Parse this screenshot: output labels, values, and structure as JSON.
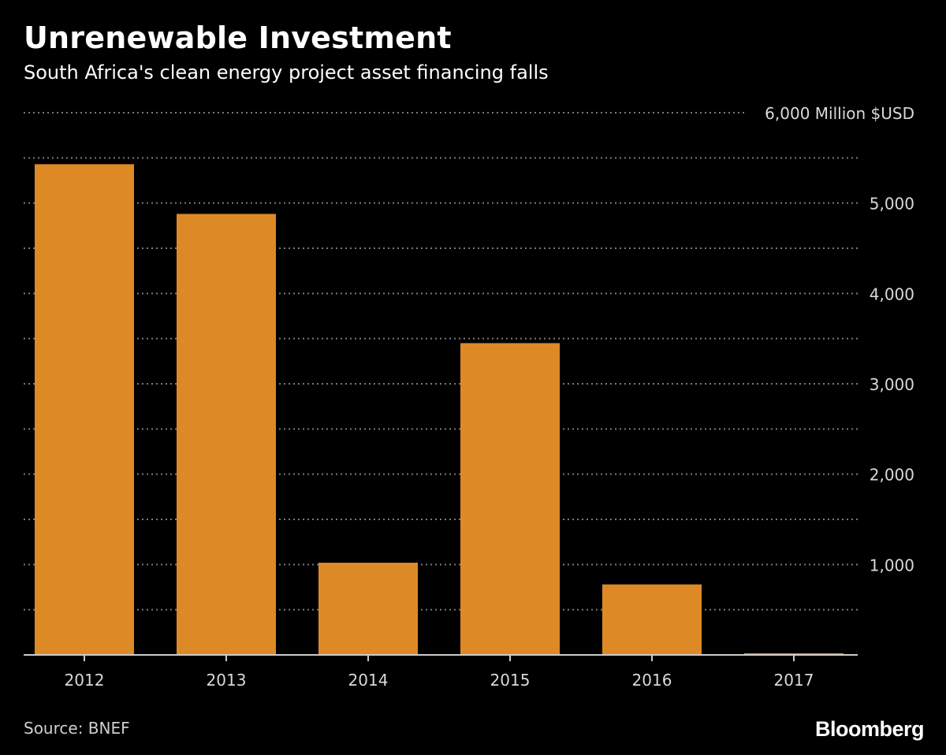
{
  "chart_data": {
    "type": "bar",
    "title": "Unrenewable Investment",
    "subtitle": "South Africa's clean energy project asset financing falls",
    "categories": [
      "2012",
      "2013",
      "2014",
      "2015",
      "2016",
      "2017"
    ],
    "values": [
      5430,
      4880,
      1020,
      3450,
      780,
      10
    ],
    "ylim": [
      0,
      6000
    ],
    "y_ticks": [
      {
        "value": 1000,
        "label": "1,000"
      },
      {
        "value": 2000,
        "label": "2,000"
      },
      {
        "value": 3000,
        "label": "3,000"
      },
      {
        "value": 4000,
        "label": "4,000"
      },
      {
        "value": 5000,
        "label": "5,000"
      },
      {
        "value": 6000,
        "label": "6,000 Million $USD"
      }
    ],
    "minor_gridlines": [
      500,
      1500,
      2500,
      3500,
      4500,
      5500
    ],
    "ylabel": "Million $USD",
    "xlabel": "",
    "grid": true,
    "y_axis_position": "right",
    "bar_color": "#dd8a26",
    "grid_color": "#7a7a7a",
    "label_color": "#d9d9d9"
  },
  "source": "Source: BNEF",
  "brand": "Bloomberg"
}
